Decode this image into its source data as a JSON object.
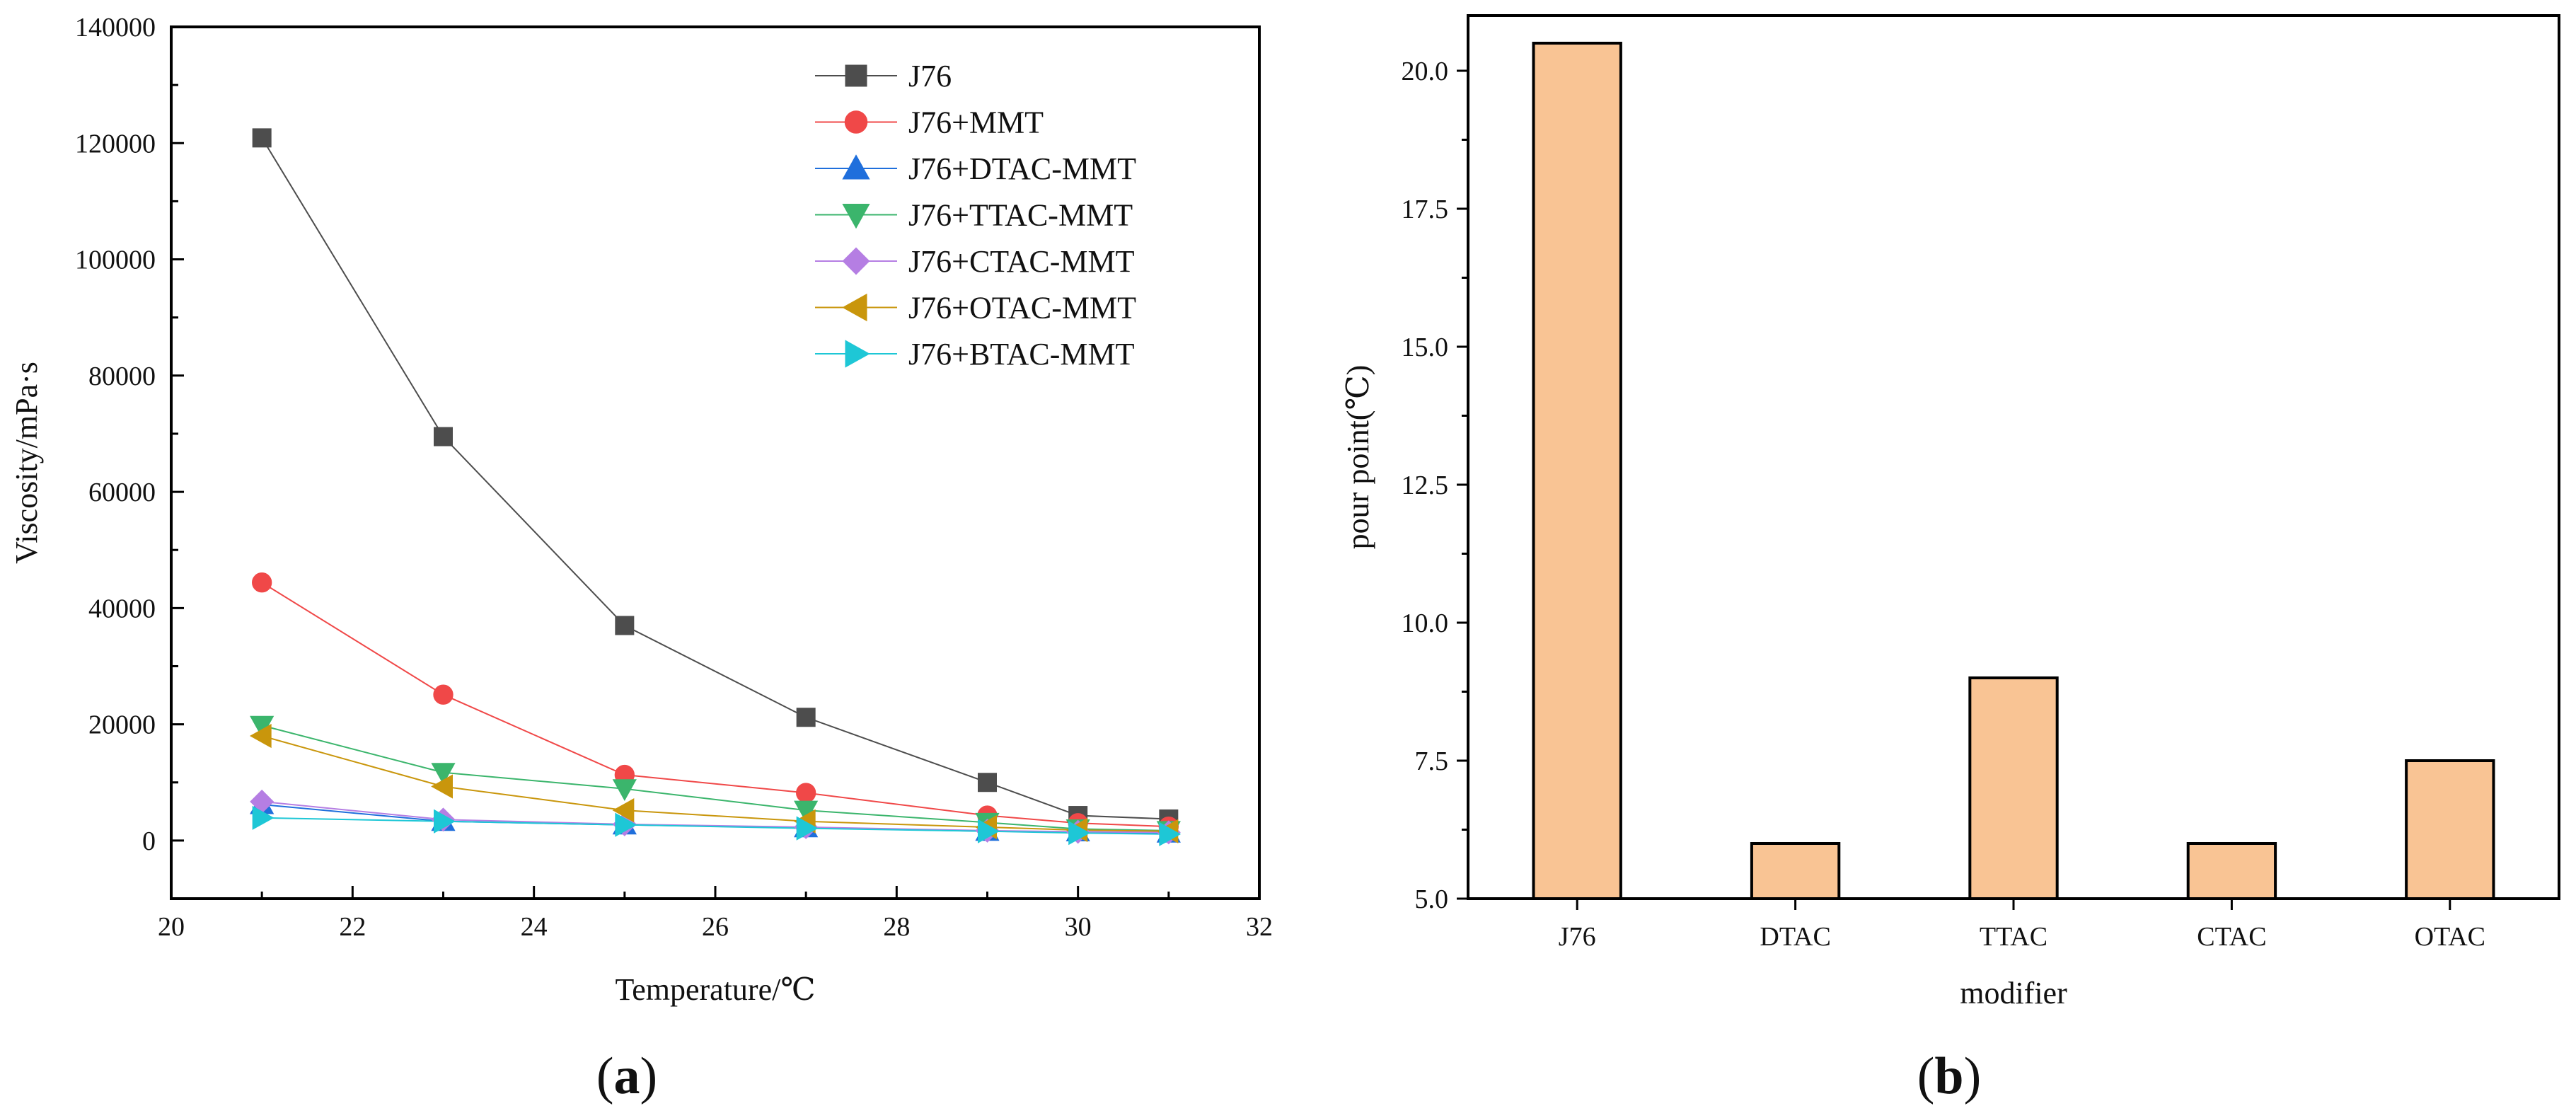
{
  "panel_a": {
    "label": "(a)",
    "label_parts": [
      "(",
      "a",
      ")"
    ]
  },
  "panel_b": {
    "label": "(b)",
    "label_parts": [
      "(",
      "b",
      ")"
    ]
  },
  "chart_data": [
    {
      "type": "line",
      "title": "",
      "xlabel": "Temperature/℃",
      "ylabel": "Viscosity/mPa·s",
      "xlim": [
        20,
        32
      ],
      "ylim": [
        -10000,
        140000
      ],
      "xticks": [
        20,
        22,
        24,
        26,
        28,
        30,
        32
      ],
      "yticks": [
        0,
        20000,
        40000,
        60000,
        80000,
        100000,
        120000,
        140000
      ],
      "x": [
        21,
        23,
        25,
        27,
        29,
        30,
        31
      ],
      "legend_position": "top-right",
      "series": [
        {
          "name": "J76",
          "marker": "square",
          "color": "#4d4d4d",
          "values": [
            120900,
            69500,
            37000,
            21200,
            10000,
            4300,
            3700
          ]
        },
        {
          "name": "J76+MMT",
          "marker": "circle",
          "color": "#f04848",
          "values": [
            44400,
            25100,
            11300,
            8200,
            4300,
            3000,
            2400
          ]
        },
        {
          "name": "J76+DTAC-MMT",
          "marker": "triangle-up",
          "color": "#1f6fdc",
          "values": [
            6200,
            3300,
            2700,
            2200,
            1600,
            1500,
            1300
          ]
        },
        {
          "name": "J76+TTAC-MMT",
          "marker": "triangle-down",
          "color": "#3bb56c",
          "values": [
            19800,
            11700,
            8900,
            5200,
            3100,
            2000,
            1700
          ]
        },
        {
          "name": "J76+CTAC-MMT",
          "marker": "diamond",
          "color": "#b57ee3",
          "values": [
            6700,
            3600,
            2800,
            2300,
            1700,
            1500,
            1400
          ]
        },
        {
          "name": "J76+OTAC-MMT",
          "marker": "triangle-left",
          "color": "#c9960c",
          "values": [
            18000,
            9300,
            5200,
            3300,
            2300,
            1800,
            1600
          ]
        },
        {
          "name": "J76+BTAC-MMT",
          "marker": "triangle-right",
          "color": "#1ec7d6",
          "values": [
            3900,
            3300,
            2700,
            2100,
            1600,
            1300,
            1100
          ]
        }
      ]
    },
    {
      "type": "bar",
      "title": "",
      "xlabel": "modifier",
      "ylabel": "pour point(℃)",
      "categories": [
        "J76",
        "DTAC",
        "TTAC",
        "CTAC",
        "OTAC"
      ],
      "values": [
        20.5,
        6.0,
        9.0,
        6.0,
        7.5
      ],
      "ylim": [
        5.0,
        21.0
      ],
      "yticks": [
        "5.0",
        "7.5",
        "10.0",
        "12.5",
        "15.0",
        "17.5",
        "20.0"
      ],
      "bar_color": "#f9c494",
      "edge_color": "#000000"
    }
  ]
}
